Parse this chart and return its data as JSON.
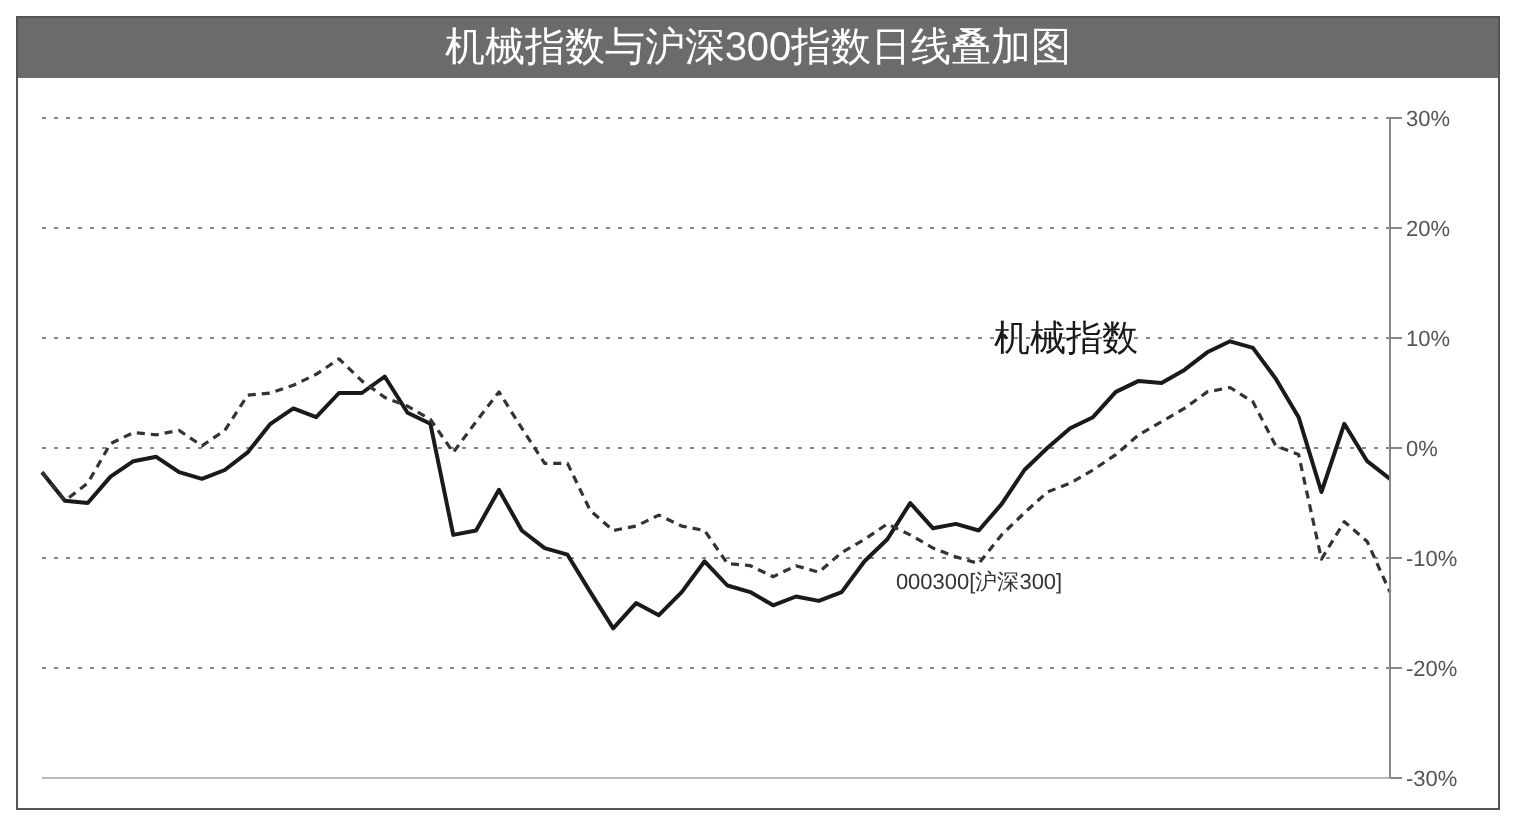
{
  "chart_data": {
    "type": "line",
    "title": "机械指数与沪深300指数日线叠加图",
    "categories": [
      null,
      null,
      null,
      null,
      null,
      null,
      null,
      null,
      null,
      null,
      null,
      null,
      null,
      null,
      null,
      null,
      null,
      null,
      null,
      null,
      null,
      null,
      null,
      null,
      null,
      null,
      null,
      null,
      null,
      null,
      null,
      null,
      null,
      null,
      null,
      null,
      null,
      null,
      null,
      null,
      null,
      null,
      null,
      null,
      null,
      null,
      null,
      null,
      null,
      null,
      null,
      null,
      null,
      null,
      null,
      null,
      null,
      null,
      null,
      null
    ],
    "series": [
      {
        "name": "机械指数",
        "color": "#1a1a1a",
        "line_style": "solid",
        "values": [
          -2.2,
          -4.8,
          -5.0,
          -2.6,
          -1.2,
          -0.8,
          -2.2,
          -2.8,
          -2.0,
          -0.4,
          2.2,
          3.6,
          2.8,
          5.0,
          5.0,
          6.5,
          3.2,
          2.2,
          -7.9,
          -7.5,
          -3.8,
          -7.5,
          -9.1,
          -9.7,
          -13.1,
          -16.4,
          -14.1,
          -15.2,
          -13.1,
          -10.3,
          -12.5,
          -13.1,
          -14.3,
          -13.5,
          -13.9,
          -13.1,
          -10.3,
          -8.3,
          -5.0,
          -7.3,
          -6.9,
          -7.5,
          -5.1,
          -2.0,
          0,
          1.8,
          2.8,
          5.1,
          6.1,
          5.9,
          7.1,
          8.7,
          9.7,
          9.1,
          6.3,
          2.8,
          -4.0,
          2.2,
          -1.2,
          -2.8
        ]
      },
      {
        "name": "000300[沪深300]",
        "color": "#333333",
        "line_style": "dashed",
        "values": [
          -2.2,
          -4.8,
          -3.2,
          0.4,
          1.4,
          1.2,
          1.6,
          0.2,
          1.6,
          4.8,
          5.0,
          5.7,
          6.7,
          8.1,
          6.1,
          4.6,
          3.8,
          2.6,
          -0.4,
          2.4,
          5.1,
          1.8,
          -1.4,
          -1.4,
          -5.7,
          -7.5,
          -7.1,
          -6.1,
          -7.1,
          -7.5,
          -10.5,
          -10.7,
          -11.7,
          -10.7,
          -11.3,
          -9.5,
          -8.3,
          -6.9,
          -7.9,
          -9.1,
          -9.9,
          -10.5,
          -7.9,
          -5.9,
          -4.0,
          -3.2,
          -2.0,
          -0.6,
          1.2,
          2.4,
          3.6,
          5.1,
          5.5,
          4.2,
          0.2,
          -0.6,
          -10.1,
          -6.7,
          -8.5,
          -13.1
        ]
      }
    ],
    "ylim": [
      -30,
      30
    ],
    "yticks": [
      {
        "value": -30,
        "label": "-30%"
      },
      {
        "value": -20,
        "label": "-20%"
      },
      {
        "value": -10,
        "label": "-10%"
      },
      {
        "value": 0,
        "label": "0%"
      },
      {
        "value": 10,
        "label": "10%"
      },
      {
        "value": 20,
        "label": "20%"
      },
      {
        "value": 30,
        "label": "30%"
      }
    ],
    "grid": "y",
    "marker": "none"
  }
}
